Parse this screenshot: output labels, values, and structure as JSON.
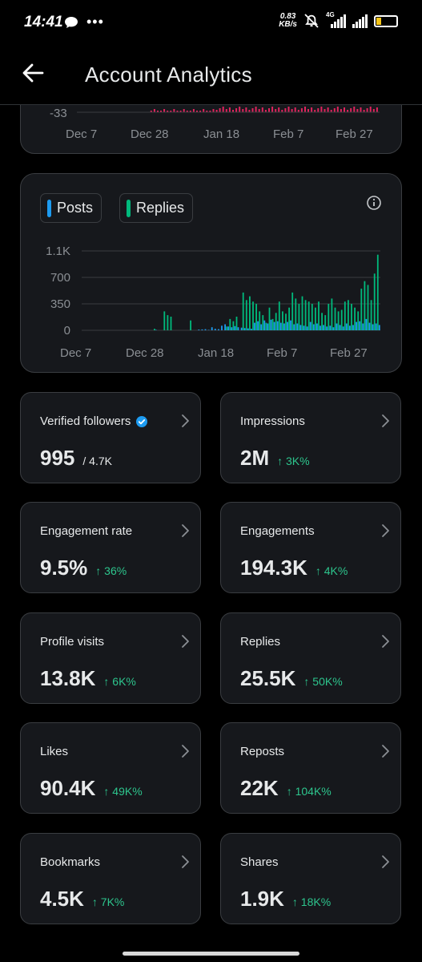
{
  "status_bar": {
    "time": "14:41",
    "net_speed_value": "0.83",
    "net_speed_unit": "KB/s",
    "network_type": "4G",
    "battery_level": "19"
  },
  "header": {
    "title": "Account Analytics"
  },
  "chart_top": {
    "ytick": "-33",
    "xticks": [
      "Dec 7",
      "Dec 28",
      "Jan 18",
      "Feb 7",
      "Feb 27"
    ]
  },
  "chart_data": {
    "type": "bar",
    "legend": [
      "Posts",
      "Replies"
    ],
    "colors": {
      "posts": "#1d9bf0",
      "replies": "#00ba7c"
    },
    "ytick_labels": [
      "1.1K",
      "700",
      "350",
      "0"
    ],
    "ylim": [
      0,
      1050
    ],
    "xtick_labels": [
      "Dec 7",
      "Dec 28",
      "Jan 18",
      "Feb 7",
      "Feb 27"
    ],
    "x": [
      "Dec 7",
      "Dec 8",
      "Dec 9",
      "Dec 10",
      "Dec 11",
      "Dec 12",
      "Dec 13",
      "Dec 14",
      "Dec 15",
      "Dec 16",
      "Dec 17",
      "Dec 18",
      "Dec 19",
      "Dec 20",
      "Dec 21",
      "Dec 22",
      "Dec 23",
      "Dec 24",
      "Dec 25",
      "Dec 26",
      "Dec 27",
      "Dec 28",
      "Dec 29",
      "Dec 30",
      "Dec 31",
      "Jan 1",
      "Jan 2",
      "Jan 3",
      "Jan 4",
      "Jan 5",
      "Jan 6",
      "Jan 7",
      "Jan 8",
      "Jan 9",
      "Jan 10",
      "Jan 11",
      "Jan 12",
      "Jan 13",
      "Jan 14",
      "Jan 15",
      "Jan 16",
      "Jan 17",
      "Jan 18",
      "Jan 19",
      "Jan 20",
      "Jan 21",
      "Jan 22",
      "Jan 23",
      "Jan 24",
      "Jan 25",
      "Jan 26",
      "Jan 27",
      "Jan 28",
      "Jan 29",
      "Jan 30",
      "Jan 31",
      "Feb 1",
      "Feb 2",
      "Feb 3",
      "Feb 4",
      "Feb 5",
      "Feb 6",
      "Feb 7",
      "Feb 8",
      "Feb 9",
      "Feb 10",
      "Feb 11",
      "Feb 12",
      "Feb 13",
      "Feb 14",
      "Feb 15",
      "Feb 16",
      "Feb 17",
      "Feb 18",
      "Feb 19",
      "Feb 20",
      "Feb 21",
      "Feb 22",
      "Feb 23",
      "Feb 24",
      "Feb 25",
      "Feb 26",
      "Feb 27",
      "Feb 28",
      "Mar 1",
      "Mar 2",
      "Mar 3",
      "Mar 4",
      "Mar 5",
      "Mar 6"
    ],
    "series": [
      {
        "name": "Posts",
        "values": [
          0,
          0,
          0,
          0,
          0,
          0,
          0,
          0,
          0,
          0,
          0,
          0,
          0,
          0,
          0,
          0,
          0,
          0,
          0,
          0,
          0,
          5,
          0,
          0,
          0,
          0,
          0,
          0,
          0,
          0,
          0,
          0,
          0,
          0,
          10,
          12,
          15,
          5,
          40,
          20,
          15,
          60,
          80,
          50,
          40,
          55,
          40,
          35,
          30,
          25,
          20,
          100,
          120,
          80,
          130,
          90,
          140,
          110,
          120,
          100,
          90,
          110,
          130,
          80,
          90,
          70,
          60,
          50,
          110,
          80,
          90,
          60,
          70,
          50,
          60,
          40,
          90,
          70,
          50,
          90,
          60,
          70,
          110,
          120,
          90,
          150,
          100,
          80,
          90,
          70
        ]
      },
      {
        "name": "Replies",
        "values": [
          0,
          0,
          0,
          0,
          0,
          0,
          0,
          0,
          0,
          0,
          0,
          0,
          0,
          0,
          0,
          0,
          0,
          0,
          0,
          0,
          0,
          20,
          0,
          0,
          250,
          200,
          180,
          0,
          0,
          0,
          0,
          0,
          130,
          0,
          0,
          0,
          0,
          0,
          0,
          0,
          0,
          0,
          0,
          50,
          150,
          120,
          180,
          0,
          500,
          400,
          450,
          380,
          350,
          250,
          200,
          100,
          300,
          150,
          230,
          380,
          250,
          220,
          300,
          500,
          420,
          350,
          450,
          400,
          380,
          350,
          300,
          380,
          230,
          200,
          350,
          420,
          300,
          250,
          270,
          380,
          400,
          350,
          300,
          250,
          550,
          650,
          600,
          400,
          750,
          1000
        ]
      }
    ]
  },
  "stats": [
    {
      "label": "Verified followers",
      "value": "995",
      "sub": "/ 4.7K",
      "change": "",
      "verified": true
    },
    {
      "label": "Impressions",
      "value": "2M",
      "sub": "",
      "change": "↑ 3K%"
    },
    {
      "label": "Engagement rate",
      "value": "9.5%",
      "sub": "",
      "change": "↑ 36%"
    },
    {
      "label": "Engagements",
      "value": "194.3K",
      "sub": "",
      "change": "↑ 4K%"
    },
    {
      "label": "Profile visits",
      "value": "13.8K",
      "sub": "",
      "change": "↑ 6K%"
    },
    {
      "label": "Replies",
      "value": "25.5K",
      "sub": "",
      "change": "↑ 50K%"
    },
    {
      "label": "Likes",
      "value": "90.4K",
      "sub": "",
      "change": "↑ 49K%"
    },
    {
      "label": "Reposts",
      "value": "22K",
      "sub": "",
      "change": "↑ 104K%"
    },
    {
      "label": "Bookmarks",
      "value": "4.5K",
      "sub": "",
      "change": "↑ 7K%"
    },
    {
      "label": "Shares",
      "value": "1.9K",
      "sub": "",
      "change": "↑ 18K%"
    }
  ]
}
